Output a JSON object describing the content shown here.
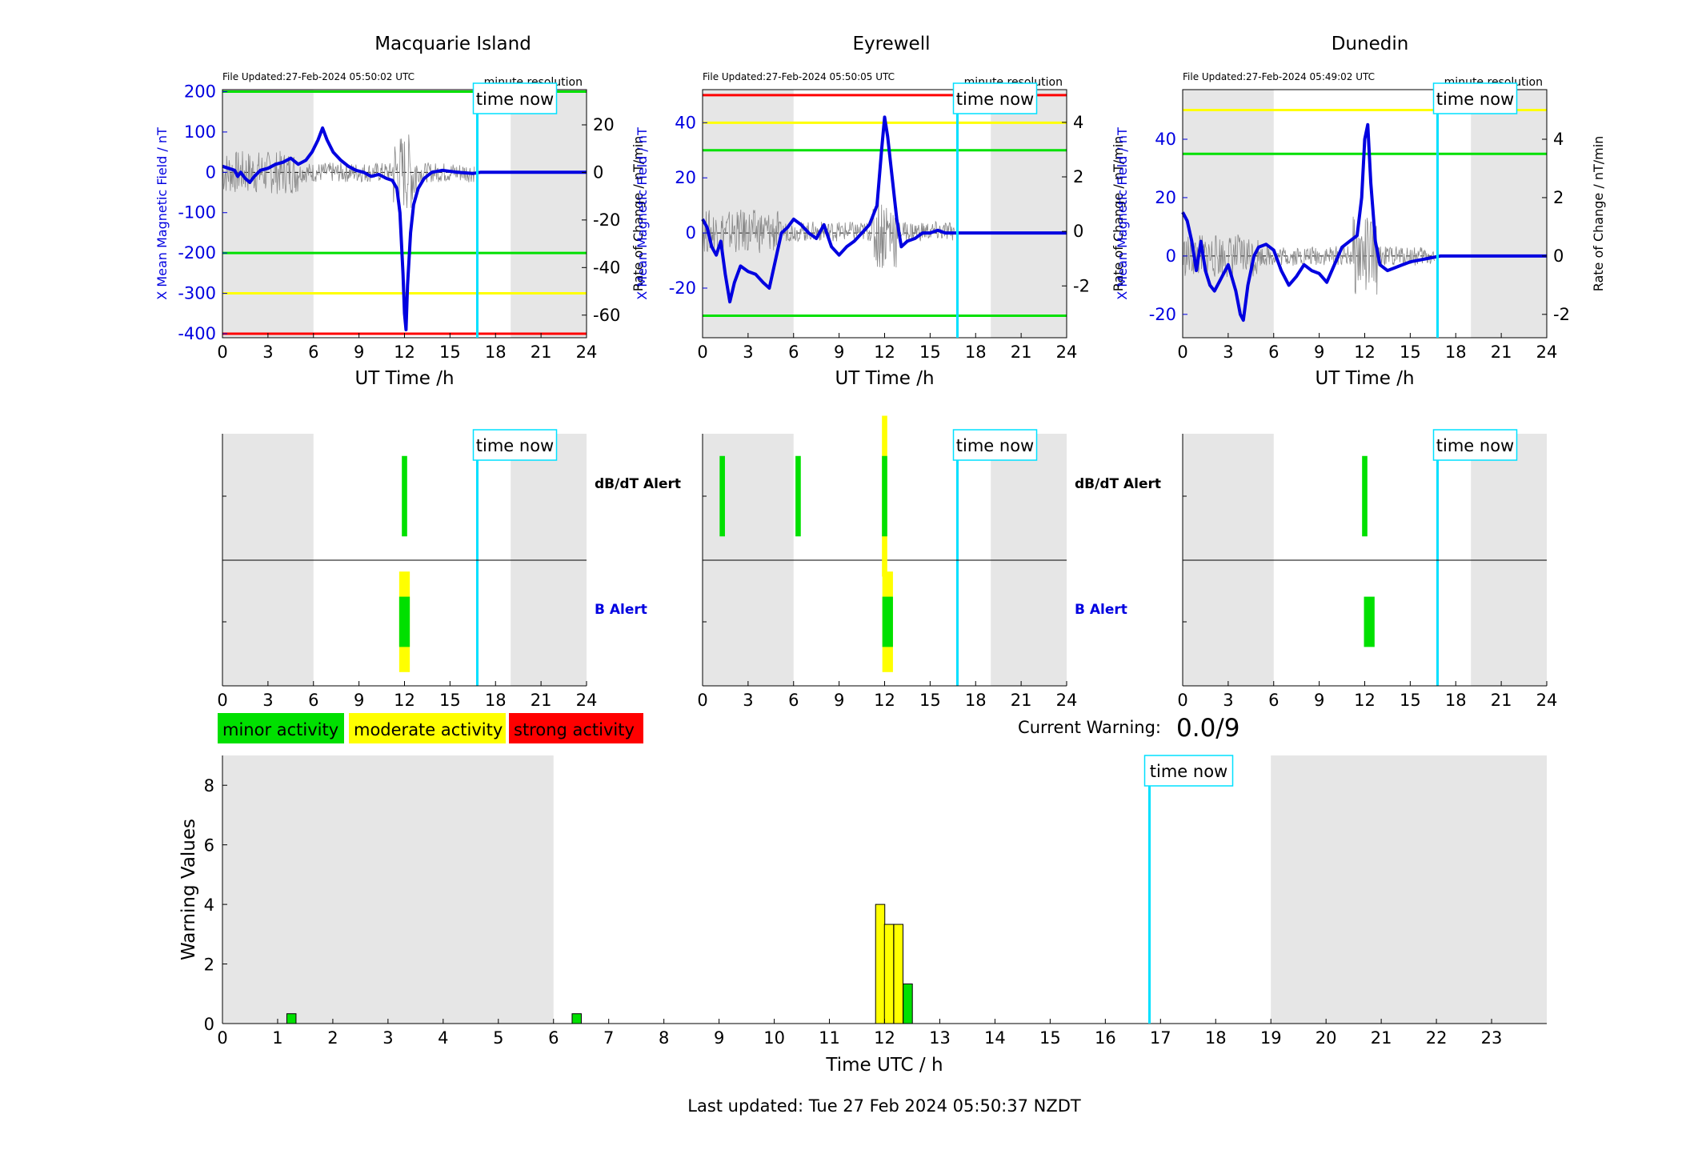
{
  "stations": [
    {
      "name": "Macquarie Island",
      "file_updated": "File Updated:27-Feb-2024 05:50:02 UTC",
      "resolution": "minute resolution",
      "ylabel_left": "X Mean Magnetic Field / nT",
      "ylabel_right": "Rate of Change / nT/min",
      "ylim": [
        -410,
        205
      ],
      "y2lim": [
        -69.5,
        34.8
      ],
      "yticks": [
        -400,
        -300,
        -200,
        -100,
        0,
        100,
        200
      ],
      "y2ticks": [
        -60,
        -40,
        -20,
        0,
        20
      ],
      "thresholds": [
        {
          "value": 200,
          "color": "#00e000"
        },
        {
          "value": -200,
          "color": "#00e000"
        },
        {
          "value": -300,
          "color": "#ffff00"
        },
        {
          "value": -400,
          "color": "#ff0000"
        }
      ],
      "field": [
        [
          0,
          15
        ],
        [
          0.4,
          10
        ],
        [
          0.8,
          5
        ],
        [
          1.0,
          -10
        ],
        [
          1.2,
          0
        ],
        [
          1.5,
          -15
        ],
        [
          1.8,
          -25
        ],
        [
          2.1,
          -10
        ],
        [
          2.5,
          5
        ],
        [
          3.0,
          10
        ],
        [
          3.5,
          20
        ],
        [
          4.0,
          25
        ],
        [
          4.5,
          35
        ],
        [
          5.0,
          20
        ],
        [
          5.5,
          30
        ],
        [
          5.9,
          50
        ],
        [
          6.3,
          80
        ],
        [
          6.6,
          110
        ],
        [
          6.9,
          80
        ],
        [
          7.3,
          50
        ],
        [
          7.8,
          30
        ],
        [
          8.3,
          15
        ],
        [
          8.8,
          5
        ],
        [
          9.3,
          0
        ],
        [
          9.8,
          -10
        ],
        [
          10.3,
          -5
        ],
        [
          10.8,
          -15
        ],
        [
          11.2,
          -20
        ],
        [
          11.5,
          -40
        ],
        [
          11.7,
          -100
        ],
        [
          11.9,
          -250
        ],
        [
          12.0,
          -350
        ],
        [
          12.1,
          -390
        ],
        [
          12.2,
          -280
        ],
        [
          12.4,
          -150
        ],
        [
          12.6,
          -80
        ],
        [
          12.9,
          -40
        ],
        [
          13.3,
          -15
        ],
        [
          13.8,
          0
        ],
        [
          14.5,
          5
        ],
        [
          15.5,
          0
        ],
        [
          16.5,
          -3
        ],
        [
          17.0,
          0
        ],
        [
          24,
          0
        ]
      ],
      "dbdt_alerts": [
        {
          "t": 12.0,
          "w": 0.35,
          "h": 0.2,
          "color": "#00e000"
        }
      ],
      "b_alerts": [
        {
          "t": 12.0,
          "w": 0.7,
          "h": 0.4,
          "color": "#ffff00"
        },
        {
          "t": 12.0,
          "w": 0.7,
          "h": 0.2,
          "color": "#00e000"
        }
      ]
    },
    {
      "name": "Eyrewell",
      "file_updated": "File Updated:27-Feb-2024 05:50:05 UTC",
      "resolution": "minute resolution",
      "ylabel_left": "X Mean Magnetic Field / nT",
      "ylabel_right": "Rate of Change / nT/min",
      "ylim": [
        -38,
        52
      ],
      "y2lim": [
        -3.9,
        5.2
      ],
      "yticks": [
        -20,
        0,
        20,
        40
      ],
      "y2ticks": [
        -2,
        0,
        2,
        4
      ],
      "thresholds": [
        {
          "value": 50,
          "color": "#ff0000"
        },
        {
          "value": 40,
          "color": "#ffff00"
        },
        {
          "value": 30,
          "color": "#00e000"
        },
        {
          "value": -30,
          "color": "#00e000"
        }
      ],
      "field": [
        [
          0,
          5
        ],
        [
          0.3,
          2
        ],
        [
          0.6,
          -5
        ],
        [
          0.9,
          -8
        ],
        [
          1.2,
          -3
        ],
        [
          1.5,
          -15
        ],
        [
          1.8,
          -25
        ],
        [
          2.1,
          -18
        ],
        [
          2.5,
          -12
        ],
        [
          3.0,
          -14
        ],
        [
          3.5,
          -15
        ],
        [
          4.0,
          -18
        ],
        [
          4.4,
          -20
        ],
        [
          4.8,
          -10
        ],
        [
          5.2,
          0
        ],
        [
          5.6,
          2
        ],
        [
          6.0,
          5
        ],
        [
          6.5,
          3
        ],
        [
          7.0,
          0
        ],
        [
          7.5,
          -2
        ],
        [
          8.0,
          3
        ],
        [
          8.5,
          -5
        ],
        [
          9.0,
          -8
        ],
        [
          9.5,
          -5
        ],
        [
          10.0,
          -3
        ],
        [
          10.5,
          0
        ],
        [
          11.0,
          3
        ],
        [
          11.5,
          10
        ],
        [
          11.8,
          30
        ],
        [
          12.0,
          42
        ],
        [
          12.2,
          35
        ],
        [
          12.5,
          20
        ],
        [
          12.8,
          5
        ],
        [
          13.1,
          -5
        ],
        [
          13.5,
          -3
        ],
        [
          14.0,
          -2
        ],
        [
          14.5,
          0
        ],
        [
          15.0,
          0
        ],
        [
          15.5,
          1
        ],
        [
          16.0,
          0
        ],
        [
          24,
          0
        ]
      ],
      "dbdt_alerts": [
        {
          "t": 1.3,
          "w": 0.35,
          "h": 0.2,
          "color": "#00e000"
        },
        {
          "t": 6.3,
          "w": 0.35,
          "h": 0.2,
          "color": "#00e000"
        },
        {
          "t": 12.0,
          "w": 0.35,
          "h": 0.4,
          "color": "#ffff00"
        },
        {
          "t": 12.0,
          "w": 0.35,
          "h": 0.2,
          "color": "#00e000"
        }
      ],
      "b_alerts": [
        {
          "t": 12.2,
          "w": 0.7,
          "h": 0.4,
          "color": "#ffff00"
        },
        {
          "t": 12.2,
          "w": 0.7,
          "h": 0.2,
          "color": "#00e000"
        }
      ]
    },
    {
      "name": "Dunedin",
      "file_updated": "File Updated:27-Feb-2024 05:49:02 UTC",
      "resolution": "minute resolution",
      "ylabel_left": "X Mean Magnetic Field / nT",
      "ylabel_right": "Rate of Change / nT/min",
      "ylim": [
        -28,
        57
      ],
      "y2lim": [
        -2.8,
        5.7
      ],
      "yticks": [
        -20,
        0,
        20,
        40
      ],
      "y2ticks": [
        -2,
        0,
        2,
        4
      ],
      "thresholds": [
        {
          "value": 50,
          "color": "#ffff00"
        },
        {
          "value": 35,
          "color": "#00e000"
        }
      ],
      "field": [
        [
          0,
          15
        ],
        [
          0.3,
          12
        ],
        [
          0.6,
          5
        ],
        [
          0.9,
          -5
        ],
        [
          1.2,
          5
        ],
        [
          1.5,
          -5
        ],
        [
          1.8,
          -10
        ],
        [
          2.1,
          -12
        ],
        [
          2.5,
          -8
        ],
        [
          3.0,
          -3
        ],
        [
          3.5,
          -12
        ],
        [
          3.8,
          -20
        ],
        [
          4.0,
          -22
        ],
        [
          4.3,
          -10
        ],
        [
          4.7,
          0
        ],
        [
          5.0,
          3
        ],
        [
          5.5,
          4
        ],
        [
          6.0,
          2
        ],
        [
          6.5,
          -5
        ],
        [
          7.0,
          -10
        ],
        [
          7.5,
          -7
        ],
        [
          8.0,
          -3
        ],
        [
          8.5,
          -5
        ],
        [
          9.0,
          -6
        ],
        [
          9.5,
          -9
        ],
        [
          10.0,
          -3
        ],
        [
          10.5,
          3
        ],
        [
          11.0,
          5
        ],
        [
          11.5,
          7
        ],
        [
          11.8,
          20
        ],
        [
          12.0,
          40
        ],
        [
          12.2,
          45
        ],
        [
          12.4,
          25
        ],
        [
          12.7,
          5
        ],
        [
          13.0,
          -3
        ],
        [
          13.5,
          -5
        ],
        [
          14.0,
          -4
        ],
        [
          14.5,
          -3
        ],
        [
          15.0,
          -2
        ],
        [
          16.0,
          -1
        ],
        [
          17,
          0
        ],
        [
          24,
          0
        ]
      ],
      "dbdt_alerts": [
        {
          "t": 12.0,
          "w": 0.35,
          "h": 0.2,
          "color": "#00e000"
        }
      ],
      "b_alerts": [
        {
          "t": 12.3,
          "w": 0.7,
          "h": 0.2,
          "color": "#00e000"
        }
      ]
    }
  ],
  "common": {
    "xlabel": "UT Time /h",
    "xticks": [
      0,
      3,
      6,
      9,
      12,
      15,
      18,
      21,
      24
    ],
    "time_now": 16.8,
    "time_now_label": "time now",
    "night_shading": [
      [
        0,
        6
      ],
      [
        19,
        24
      ]
    ],
    "dbdt_label": "dB/dT Alert",
    "b_label": "B Alert"
  },
  "legend": [
    {
      "label": "minor activity",
      "color": "#00e000"
    },
    {
      "label": "moderate activity",
      "color": "#ffff00"
    },
    {
      "label": "strong activity",
      "color": "#ff0000"
    }
  ],
  "current_warning": {
    "label": "Current Warning:",
    "value": "0.0/9"
  },
  "chart_data": {
    "type": "bar",
    "xlabel": "Time UTC / h",
    "ylabel": "Warning Values",
    "xlim": [
      0,
      24
    ],
    "ylim": [
      0,
      9
    ],
    "xticks": [
      0,
      1,
      2,
      3,
      4,
      5,
      6,
      7,
      8,
      9,
      10,
      11,
      12,
      13,
      14,
      15,
      16,
      17,
      18,
      19,
      20,
      21,
      22,
      23
    ],
    "yticks": [
      0,
      2,
      4,
      6,
      8
    ],
    "night_shading": [
      [
        0,
        6
      ],
      [
        19,
        24
      ]
    ],
    "time_now": 16.8,
    "bars": [
      {
        "x": 1.25,
        "value": 0.33,
        "color": "#00e000"
      },
      {
        "x": 6.42,
        "value": 0.33,
        "color": "#00e000"
      },
      {
        "x": 11.92,
        "value": 4.0,
        "color": "#ffff00"
      },
      {
        "x": 12.08,
        "value": 3.33,
        "color": "#ffff00"
      },
      {
        "x": 12.25,
        "value": 3.33,
        "color": "#ffff00"
      },
      {
        "x": 12.42,
        "value": 1.33,
        "color": "#00e000"
      }
    ]
  },
  "footer": "Last updated: Tue 27 Feb 2024 05:50:37 NZDT"
}
